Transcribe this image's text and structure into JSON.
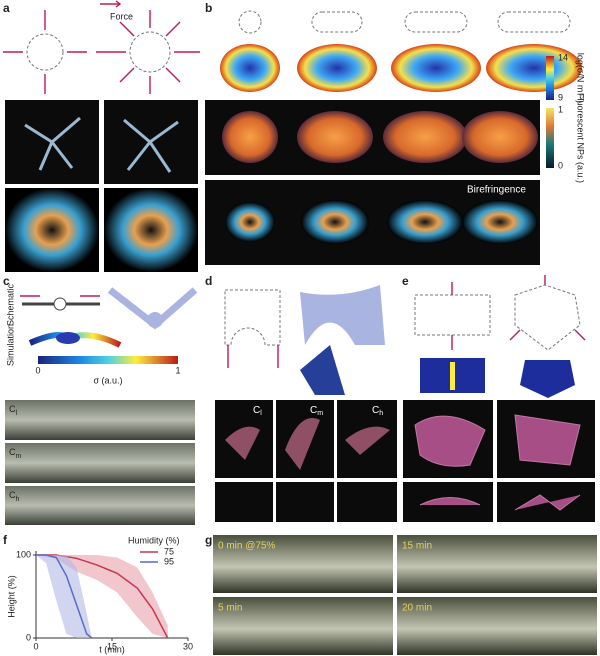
{
  "panels": {
    "a": {
      "label": "a",
      "force_label": "Force"
    },
    "b": {
      "label": "b",
      "colorbar_stress": {
        "title": "log(σ/N m⁻²)",
        "max": "14",
        "min": "9"
      },
      "colorbar_fluorescence": {
        "title": "Fluorescent NPs (a.u.)",
        "max": "1",
        "min": "0"
      },
      "annotation": "Birefringence"
    },
    "c": {
      "label": "c",
      "row_schematic": "Schematic",
      "row_simulation": "Simulation",
      "colorbar": {
        "title": "σ (a.u.)",
        "min": "0",
        "max": "1"
      },
      "photo_labels": [
        {
          "main": "C",
          "sub": "l"
        },
        {
          "main": "C",
          "sub": "m"
        },
        {
          "main": "C",
          "sub": "h"
        }
      ]
    },
    "d": {
      "label": "d",
      "photo_labels": [
        {
          "main": "C",
          "sub": "l"
        },
        {
          "main": "C",
          "sub": "m"
        },
        {
          "main": "C",
          "sub": "h"
        }
      ]
    },
    "e": {
      "label": "e"
    },
    "f": {
      "label": "f"
    },
    "g": {
      "label": "g",
      "photo_labels": [
        "0 min @75%",
        "15 min",
        "5 min",
        "20 min"
      ]
    }
  },
  "chart_data": {
    "type": "line",
    "x_label": "t (min)",
    "y_label": "Height (%)",
    "legend_title": "Humidity (%)",
    "legend_position": "upper right",
    "xlim": [
      0,
      30
    ],
    "xticks": [
      0,
      15,
      30
    ],
    "ylim": [
      0,
      100
    ],
    "yticks": [
      0,
      100
    ],
    "series": [
      {
        "name": "75",
        "color": "#c8374e",
        "band_color": "#e8a0ab",
        "x": [
          0,
          4,
          8,
          12,
          16,
          20,
          23,
          26
        ],
        "values": [
          100,
          100,
          96,
          88,
          78,
          60,
          35,
          0
        ],
        "upper": [
          100,
          100,
          100,
          100,
          97,
          85,
          55,
          15
        ],
        "lower": [
          100,
          95,
          80,
          70,
          55,
          25,
          5,
          0
        ]
      },
      {
        "name": "95",
        "color": "#5a6cc0",
        "band_color": "#b3b9e6",
        "x": [
          0,
          2,
          4,
          6,
          8,
          10,
          11
        ],
        "values": [
          100,
          100,
          97,
          75,
          40,
          5,
          0
        ],
        "upper": [
          100,
          100,
          100,
          100,
          85,
          30,
          0
        ],
        "lower": [
          100,
          90,
          45,
          5,
          0,
          0,
          0
        ]
      }
    ]
  }
}
